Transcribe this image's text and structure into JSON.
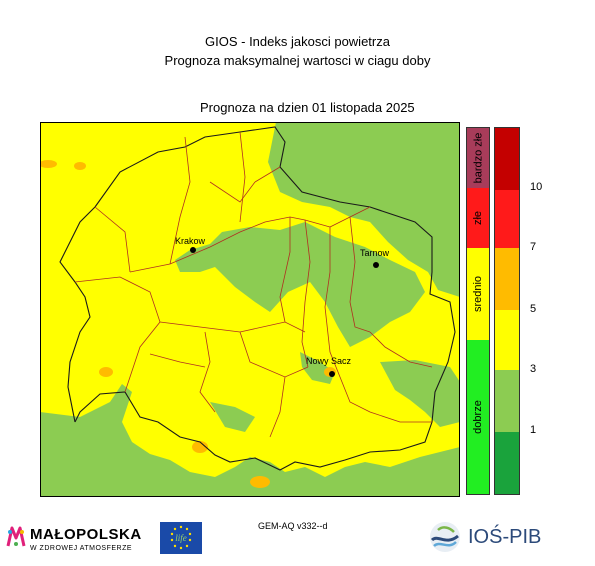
{
  "header": {
    "title": "GIOS - Indeks jakosci powietrza",
    "subtitle": "Prognoza maksymalnej wartosci w ciagu doby",
    "date_line": "Prognoza na dzien  01 listopada 2025"
  },
  "cities": [
    {
      "name": "Krakow"
    },
    {
      "name": "Tarnow"
    },
    {
      "name": "Nowy Sacz"
    }
  ],
  "category_legend": [
    {
      "label": "bardzo złe",
      "color": "#a83c5a"
    },
    {
      "label": "złe",
      "color": "#ff1a1a"
    },
    {
      "label": "srednio",
      "color": "#ffff00"
    },
    {
      "label": "dobrze",
      "color": "#22ee22"
    }
  ],
  "index_scale": {
    "colors": [
      "#c40000",
      "#ff1a1a",
      "#ffbb00",
      "#ffff00",
      "#8ccc52",
      "#1aa33c"
    ],
    "ticks": [
      "10",
      "7",
      "5",
      "3",
      "1"
    ]
  },
  "footer": {
    "model": "GEM-AQ v332--d",
    "logo_left_main": "MAŁOPOLSKA",
    "logo_left_sub": "W ZDROWEJ ATMOSFERZE",
    "eu_logo_text": "life",
    "logo_right": "IOŚ-PIB"
  }
}
